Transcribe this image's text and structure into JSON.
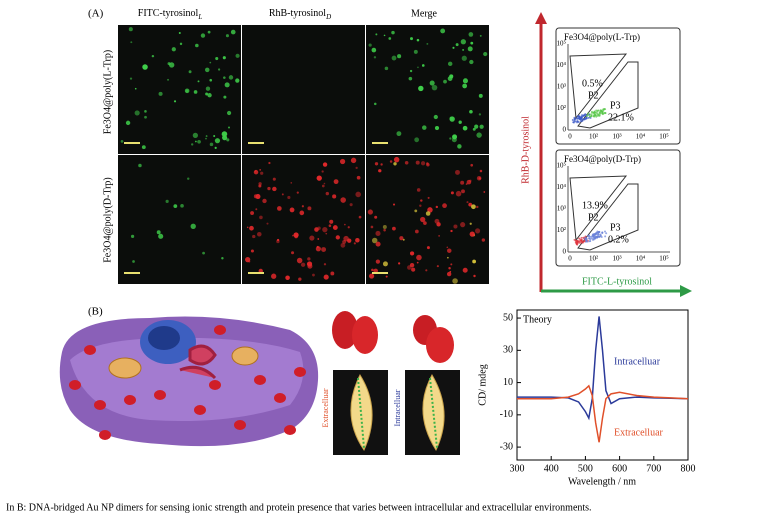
{
  "panel_a": {
    "label": "(A)",
    "columns": [
      "FITC-tyrosinol",
      "RhB-tyrosinol",
      "Merge"
    ],
    "column_subscripts": [
      "L",
      "D"
    ],
    "rows": [
      "Fe3O4@poly(L-Trp)",
      "Fe3O4@poly(D-Trp)"
    ],
    "flow": {
      "y_axis": "RhB-D-tyrosinol",
      "x_axis": "FITC-L-tyrosinol",
      "y_ticks": [
        "10⁵",
        "10⁴",
        "10³",
        "10²",
        "0"
      ],
      "x_ticks": [
        "0",
        "10²",
        "10³",
        "10⁴",
        "10⁵"
      ],
      "plots": [
        {
          "title": "Fe3O4@poly(L-Trp)",
          "p2_pct": "0.5%",
          "p2": "P2",
          "p3": "P3",
          "p3_pct": "22.1%"
        },
        {
          "title": "Fe3O4@poly(D-Trp)",
          "p2_pct": "13.9%",
          "p2": "P2",
          "p3": "P3",
          "p3_pct": "0.2%"
        }
      ]
    }
  },
  "panel_b": {
    "label": "(B)",
    "extracellular": "Extracelluar",
    "intracellular": "Intracelluar"
  },
  "chart_data": {
    "type": "line",
    "title": "Theory",
    "x_label": "Wavelength / nm",
    "y_label": "CD/ mdeg",
    "x": [
      300,
      350,
      400,
      450,
      480,
      500,
      510,
      520,
      530,
      540,
      550,
      560,
      575,
      600,
      650,
      700,
      750,
      800
    ],
    "series": [
      {
        "name": "Intracelluar",
        "color": "#2b3a9a",
        "values": [
          1,
          1,
          1,
          0.5,
          -2,
          -8,
          -12,
          0,
          30,
          51,
          30,
          5,
          -3,
          0,
          1,
          0.5,
          0.3,
          0
        ]
      },
      {
        "name": "Extracelluar",
        "color": "#e0502a",
        "values": [
          0,
          0,
          0,
          1,
          3,
          6,
          8,
          2,
          -15,
          -27,
          -12,
          0,
          3,
          4,
          2,
          1,
          0.5,
          0
        ]
      }
    ],
    "xlim": [
      300,
      800
    ],
    "ylim": [
      -38,
      55
    ],
    "xticks": [
      300,
      400,
      500,
      600,
      700,
      800
    ],
    "yticks": [
      -30,
      -10,
      10,
      30,
      50
    ]
  },
  "caption": "In B: DNA-bridged Au NP dimers for sensing ionic strength and protein presence that varies between intracellular and extracellular environments."
}
